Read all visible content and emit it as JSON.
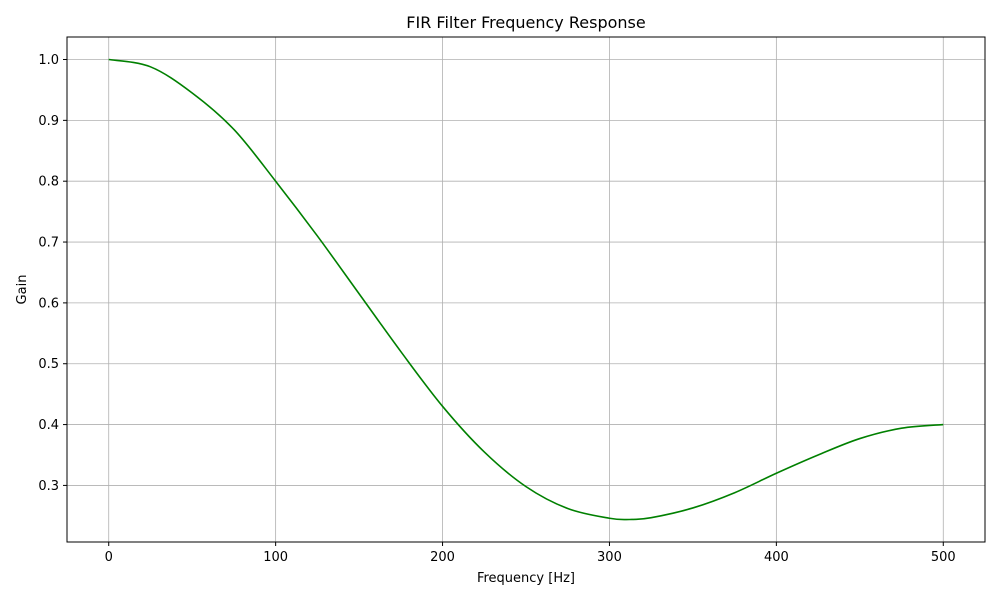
{
  "chart_data": {
    "type": "line",
    "title": "FIR Filter Frequency Response",
    "xlabel": "Frequency [Hz]",
    "ylabel": "Gain",
    "xlim": [
      -25,
      525
    ],
    "ylim": [
      0.207,
      1.037
    ],
    "x_ticks": [
      0,
      100,
      200,
      300,
      400,
      500
    ],
    "y_ticks": [
      0.3,
      0.4,
      0.5,
      0.6,
      0.7,
      0.8,
      0.9,
      1.0
    ],
    "x_tick_labels": [
      "0",
      "100",
      "200",
      "300",
      "400",
      "500"
    ],
    "y_tick_labels": [
      "0.3",
      "0.4",
      "0.5",
      "0.6",
      "0.7",
      "0.8",
      "0.9",
      "1.0"
    ],
    "grid": true,
    "series": [
      {
        "color": "#008000",
        "x": [
          0,
          25,
          50,
          75,
          100,
          125,
          150,
          175,
          200,
          225,
          250,
          275,
          300,
          312,
          325,
          350,
          375,
          400,
          425,
          450,
          475,
          500
        ],
        "y": [
          1.0,
          0.988,
          0.945,
          0.885,
          0.8,
          0.71,
          0.615,
          0.52,
          0.43,
          0.355,
          0.298,
          0.262,
          0.246,
          0.244,
          0.247,
          0.263,
          0.288,
          0.32,
          0.35,
          0.377,
          0.394,
          0.4
        ]
      }
    ]
  }
}
